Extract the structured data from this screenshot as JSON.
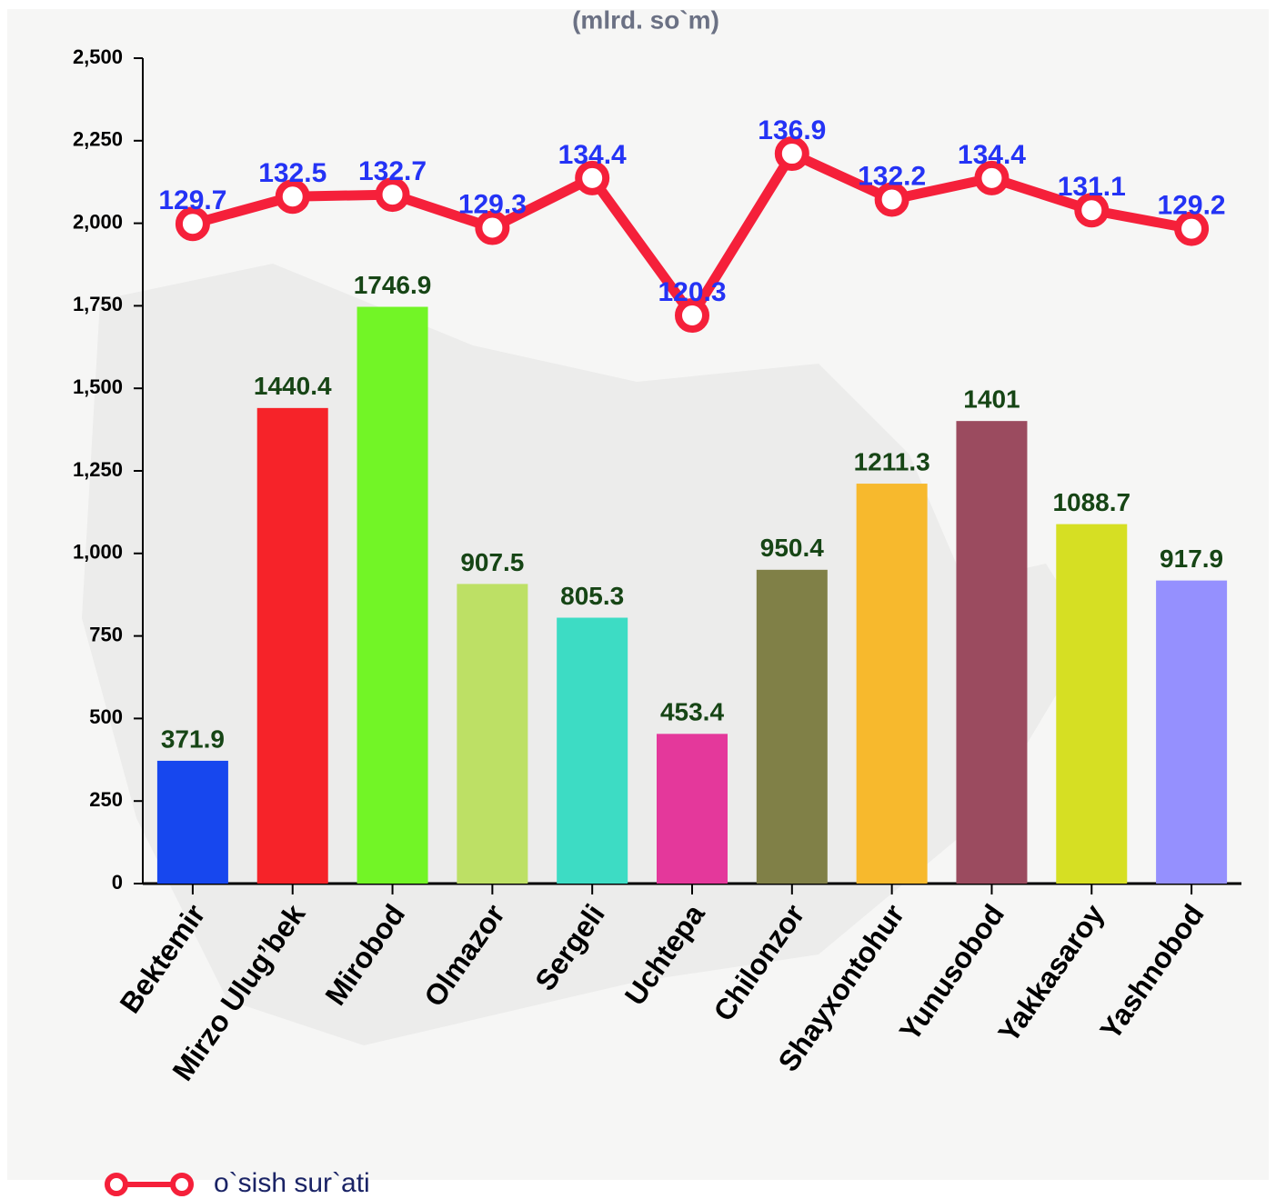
{
  "chart_data": {
    "type": "bar",
    "title": "(mlrd. so`m)",
    "categories": [
      "Bektemir",
      "Mirzo Ulug’bek",
      "Mirobod",
      "Olmazor",
      "Sergeli",
      "Uchtepa",
      "Chilonzor",
      "Shayxontohur",
      "Yunusobod",
      "Yakkasaroy",
      "Yashnobod"
    ],
    "series": [
      {
        "type": "bar",
        "values": [
          371.9,
          1440.4,
          1746.9,
          907.5,
          805.3,
          453.4,
          950.4,
          1211.3,
          1401,
          1088.7,
          917.9
        ],
        "colors": [
          "#1747ee",
          "#f62329",
          "#72f526",
          "#bde065",
          "#3ddcc4",
          "#e4389b",
          "#808047",
          "#f7b92d",
          "#9b4b5f",
          "#d6df23",
          "#9590fe"
        ],
        "label_color": "#164515"
      },
      {
        "type": "line",
        "name": "o`sish sur`ati",
        "axis": "y2",
        "color": "#f5203a",
        "label_color": "#2433f5",
        "values": [
          129.7,
          132.5,
          132.7,
          129.3,
          134.4,
          120.3,
          136.9,
          132.2,
          134.4,
          131.1,
          129.2
        ]
      }
    ],
    "ylim": [
      0,
      2500
    ],
    "yticks": [
      0,
      250,
      500,
      750,
      {
        "value": 1000,
        "label": "1,000"
      },
      {
        "value": 1250,
        "label": "1,250"
      },
      {
        "value": 1500,
        "label": "1,500"
      },
      {
        "value": 1750,
        "label": "1,750"
      },
      {
        "value": 2000,
        "label": "2,000"
      },
      {
        "value": 2250,
        "label": "2,250"
      },
      {
        "value": 2500,
        "label": "2,500"
      }
    ],
    "y2lim": [
      62,
      146.7
    ],
    "legend": "bottom-left"
  }
}
